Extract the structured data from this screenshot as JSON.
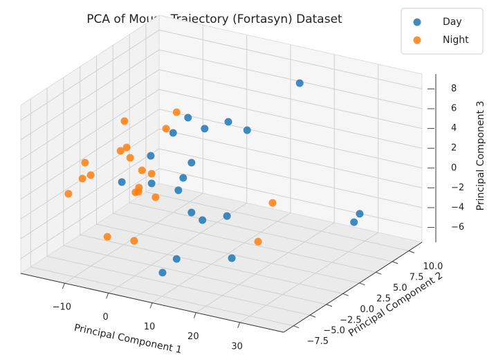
{
  "chart_data": {
    "type": "scatter3d",
    "title": "PCA of Mouse Trajectory (Fortasyn) Dataset",
    "xlabel": "Principal Component 1",
    "ylabel": "Principal Component 2",
    "zlabel": "Principal Component 3",
    "xlim": [
      -20,
      40
    ],
    "ylim": [
      -9,
      12
    ],
    "zlim": [
      -7.5,
      9.5
    ],
    "xticks": [
      {
        "value": -10,
        "label": "−10"
      },
      0,
      10,
      20,
      30
    ],
    "yticks": [
      {
        "value": -7.5,
        "label": "−7.5"
      },
      {
        "value": -5,
        "label": "−5.0"
      },
      {
        "value": -2.5,
        "label": "−2.5"
      },
      {
        "value": 0,
        "label": "0.0"
      },
      2.5,
      {
        "value": 5,
        "label": "5.0"
      },
      7.5,
      {
        "value": 10,
        "label": "10.0"
      }
    ],
    "zticks": [
      {
        "value": -6,
        "label": "−6"
      },
      {
        "value": -4,
        "label": "−4"
      },
      {
        "value": -2,
        "label": "−2"
      },
      0,
      2,
      4,
      6,
      8
    ],
    "grid": true,
    "legend": "upper right",
    "series": [
      {
        "name": "Day",
        "color": "#1f77b4",
        "x": [
          18.4,
          8.7,
          5.3,
          12.5,
          17.9,
          22.2,
          0.2,
          9.5,
          7.6,
          -6.4,
          0.4,
          6.5,
          9.5,
          12.0,
          17.6,
          32.1,
          30.8,
          6.1,
          18.7,
          9.2
        ],
        "y": [
          7.8,
          -2.7,
          -2.7,
          -2.7,
          -2.7,
          -2.7,
          -2.7,
          -2.7,
          -2.7,
          -2.7,
          -2.7,
          -2.7,
          -2.7,
          -2.7,
          -2.7,
          7.8,
          7.8,
          -2.7,
          -2.7,
          -6.9
        ],
        "z": [
          8.26,
          8.36,
          6.48,
          7.62,
          8.85,
          8.43,
          3.66,
          3.89,
          2.16,
          0.35,
          0.89,
          0.8,
          -1.15,
          -1.67,
          -0.7,
          -3.59,
          -4.56,
          -6.18,
          -4.85,
          -5.44
        ]
      },
      {
        "name": "Night",
        "color": "#ff7f0e",
        "x": [
          6.1,
          -5.8,
          3.7,
          -5.3,
          -6.7,
          -4.5,
          -14.8,
          -1.8,
          0.4,
          -13.5,
          -15.4,
          -2.5,
          -2.6,
          -3.3,
          1.3,
          -18.6,
          28.0,
          -9.7,
          -3.6,
          24.7
        ],
        "y": [
          -2.7,
          -2.7,
          -2.7,
          -2.7,
          -2.7,
          -2.7,
          -2.7,
          -2.7,
          -2.7,
          -2.7,
          -2.7,
          -2.7,
          -2.7,
          -2.7,
          -2.7,
          -2.7,
          -2.7,
          -2.7,
          -2.7,
          -2.7
        ],
        "z": [
          8.65,
          6.57,
          6.75,
          3.96,
          3.47,
          2.99,
          1.48,
          1.99,
          1.87,
          0.35,
          -0.19,
          0.18,
          -0.25,
          -0.38,
          -0.42,
          -2.04,
          1.66,
          -5.51,
          -5.31,
          -2.59
        ]
      }
    ]
  }
}
